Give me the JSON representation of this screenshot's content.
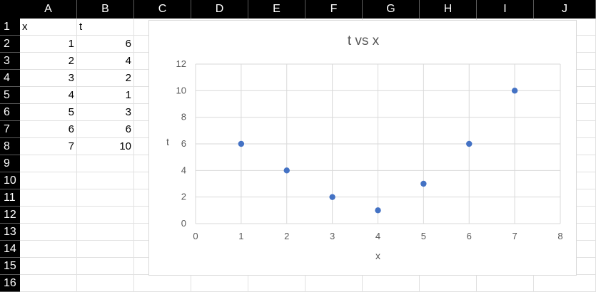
{
  "spreadsheet": {
    "columns": [
      "A",
      "B",
      "C",
      "D",
      "E",
      "F",
      "G",
      "H",
      "I",
      "J"
    ],
    "rows": [
      "1",
      "2",
      "3",
      "4",
      "5",
      "6",
      "7",
      "8",
      "9",
      "10",
      "11",
      "12",
      "13",
      "14",
      "15",
      "16"
    ],
    "cells": {
      "A1": "x",
      "B1": "t",
      "A2": "1",
      "B2": "6",
      "A3": "2",
      "B3": "4",
      "A4": "3",
      "B4": "2",
      "A5": "4",
      "B5": "1",
      "A6": "5",
      "B6": "3",
      "A7": "6",
      "B7": "6",
      "A8": "7",
      "B8": "10"
    }
  },
  "chart_data": {
    "type": "scatter",
    "title": "t vs x",
    "xlabel": "x",
    "ylabel": "t",
    "x": [
      1,
      2,
      3,
      4,
      5,
      6,
      7
    ],
    "y": [
      6,
      4,
      2,
      1,
      3,
      6,
      10
    ],
    "xlim": [
      0,
      8
    ],
    "ylim": [
      0,
      12
    ],
    "xticks": [
      "0",
      "1",
      "2",
      "3",
      "4",
      "5",
      "6",
      "7",
      "8"
    ],
    "yticks": [
      "0",
      "2",
      "4",
      "6",
      "8",
      "10",
      "12"
    ],
    "grid": true,
    "marker_color": "#4472c4"
  }
}
